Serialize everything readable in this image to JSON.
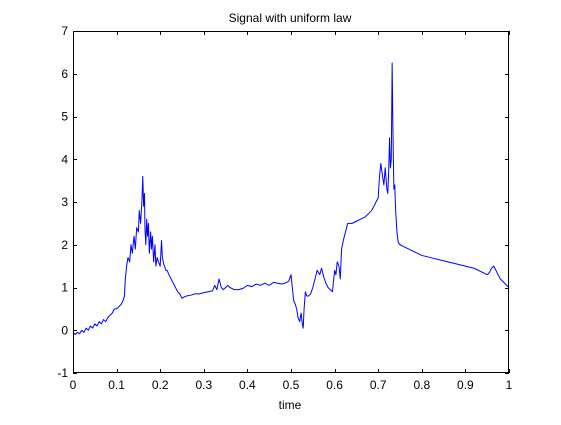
{
  "figure": {
    "background": "#ffffff"
  },
  "chart_data": {
    "type": "line",
    "title": "Signal with uniform law",
    "xlabel": "time",
    "ylabel": "",
    "xlim": [
      0,
      1
    ],
    "ylim": [
      -1,
      7
    ],
    "xticks": [
      0,
      0.1,
      0.2,
      0.3,
      0.4,
      0.5,
      0.6,
      0.7,
      0.8,
      0.9,
      1
    ],
    "xtick_labels": [
      "0",
      "0.1",
      "0.2",
      "0.3",
      "0.4",
      "0.5",
      "0.6",
      "0.7",
      "0.8",
      "0.9",
      "1"
    ],
    "yticks": [
      -1,
      0,
      1,
      2,
      3,
      4,
      5,
      6,
      7
    ],
    "ytick_labels": [
      "-1",
      "0",
      "1",
      "2",
      "3",
      "4",
      "5",
      "6",
      "7"
    ],
    "grid": false,
    "legend": "none",
    "series": [
      {
        "color": "#0000ff",
        "x": [
          0,
          0.005,
          0.01,
          0.015,
          0.02,
          0.025,
          0.03,
          0.035,
          0.04,
          0.045,
          0.05,
          0.055,
          0.06,
          0.065,
          0.07,
          0.075,
          0.08,
          0.085,
          0.09,
          0.095,
          0.1,
          0.105,
          0.11,
          0.115,
          0.118,
          0.12,
          0.123,
          0.126,
          0.13,
          0.133,
          0.136,
          0.14,
          0.143,
          0.146,
          0.15,
          0.152,
          0.155,
          0.158,
          0.16,
          0.162,
          0.164,
          0.165,
          0.167,
          0.169,
          0.171,
          0.173,
          0.175,
          0.178,
          0.18,
          0.182,
          0.185,
          0.188,
          0.19,
          0.193,
          0.196,
          0.2,
          0.203,
          0.205,
          0.208,
          0.21,
          0.213,
          0.216,
          0.22,
          0.225,
          0.23,
          0.235,
          0.24,
          0.245,
          0.25,
          0.255,
          0.26,
          0.27,
          0.28,
          0.29,
          0.3,
          0.31,
          0.32,
          0.325,
          0.33,
          0.335,
          0.34,
          0.345,
          0.35,
          0.355,
          0.36,
          0.37,
          0.38,
          0.39,
          0.4,
          0.41,
          0.42,
          0.43,
          0.44,
          0.45,
          0.46,
          0.47,
          0.48,
          0.49,
          0.495,
          0.5,
          0.503,
          0.506,
          0.51,
          0.513,
          0.516,
          0.52,
          0.523,
          0.526,
          0.528,
          0.53,
          0.533,
          0.536,
          0.54,
          0.545,
          0.55,
          0.555,
          0.56,
          0.563,
          0.566,
          0.57,
          0.575,
          0.58,
          0.585,
          0.59,
          0.595,
          0.6,
          0.603,
          0.606,
          0.61,
          0.613,
          0.616,
          0.62,
          0.625,
          0.63,
          0.64,
          0.65,
          0.66,
          0.67,
          0.68,
          0.685,
          0.69,
          0.695,
          0.7,
          0.703,
          0.706,
          0.71,
          0.713,
          0.716,
          0.72,
          0.722,
          0.724,
          0.726,
          0.728,
          0.73,
          0.732,
          0.734,
          0.736,
          0.738,
          0.74,
          0.743,
          0.746,
          0.75,
          0.76,
          0.77,
          0.78,
          0.79,
          0.8,
          0.82,
          0.84,
          0.86,
          0.88,
          0.9,
          0.92,
          0.94,
          0.95,
          0.955,
          0.96,
          0.965,
          0.97,
          0.975,
          0.98,
          0.985,
          0.99,
          0.995,
          1
        ],
        "y": [
          -0.05,
          -0.1,
          -0.05,
          -0.08,
          0.0,
          -0.05,
          0.05,
          0.0,
          0.1,
          0.05,
          0.15,
          0.1,
          0.2,
          0.15,
          0.25,
          0.2,
          0.3,
          0.35,
          0.4,
          0.5,
          0.5,
          0.55,
          0.6,
          0.7,
          0.8,
          1.2,
          1.5,
          1.7,
          1.6,
          2.0,
          1.8,
          2.2,
          1.9,
          2.4,
          2.3,
          2.8,
          2.5,
          3.0,
          3.6,
          2.9,
          3.2,
          2.4,
          2.0,
          2.6,
          2.2,
          2.5,
          1.8,
          2.3,
          1.9,
          2.2,
          1.6,
          2.0,
          1.5,
          1.7,
          1.6,
          1.5,
          2.1,
          1.7,
          1.55,
          1.5,
          1.4,
          1.4,
          1.3,
          1.2,
          1.1,
          1.0,
          0.9,
          0.85,
          0.75,
          0.78,
          0.8,
          0.82,
          0.85,
          0.85,
          0.88,
          0.9,
          0.92,
          1.05,
          0.95,
          1.2,
          1.0,
          0.95,
          1.0,
          1.05,
          1.0,
          0.95,
          0.95,
          0.98,
          1.05,
          1.02,
          1.08,
          1.05,
          1.1,
          1.05,
          1.12,
          1.1,
          1.08,
          1.12,
          1.15,
          1.3,
          1.0,
          0.7,
          0.6,
          0.5,
          0.3,
          0.2,
          0.4,
          0.15,
          0.05,
          0.5,
          0.9,
          0.8,
          0.8,
          0.85,
          1.0,
          1.2,
          1.4,
          1.35,
          1.3,
          1.45,
          1.25,
          1.1,
          1.0,
          0.95,
          0.9,
          1.4,
          1.3,
          1.6,
          1.5,
          1.2,
          1.9,
          2.1,
          2.3,
          2.5,
          2.5,
          2.55,
          2.6,
          2.65,
          2.75,
          2.8,
          2.9,
          3.0,
          3.1,
          3.6,
          3.9,
          3.6,
          3.4,
          3.8,
          3.3,
          3.2,
          3.7,
          4.5,
          3.8,
          4.0,
          6.25,
          4.5,
          3.3,
          3.4,
          2.8,
          2.3,
          2.05,
          2.0,
          1.95,
          1.9,
          1.85,
          1.8,
          1.75,
          1.7,
          1.65,
          1.6,
          1.55,
          1.5,
          1.45,
          1.35,
          1.3,
          1.35,
          1.45,
          1.5,
          1.4,
          1.3,
          1.2,
          1.15,
          1.1,
          1.05,
          1.0
        ]
      }
    ]
  }
}
